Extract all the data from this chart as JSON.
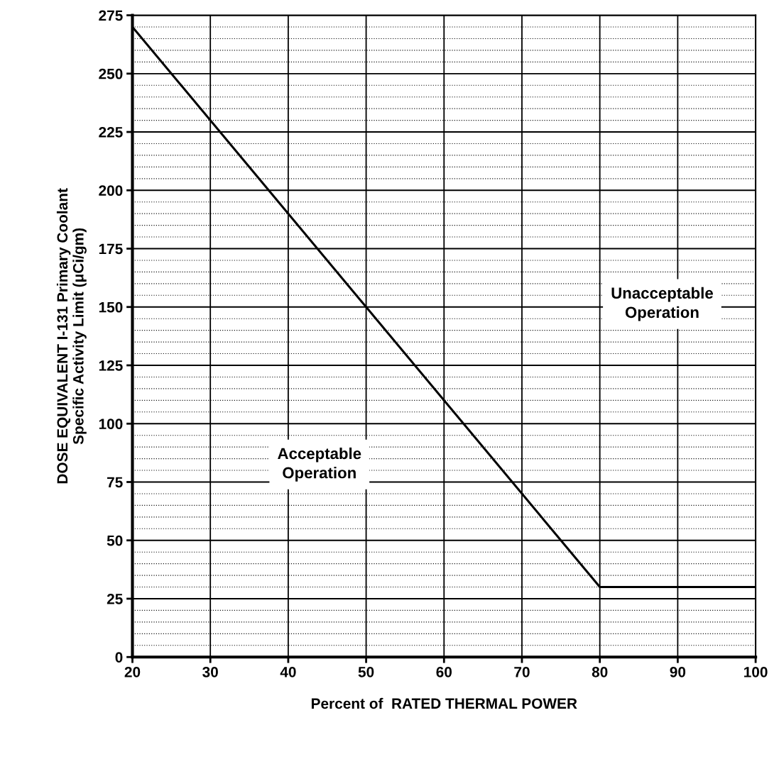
{
  "chart_data": {
    "type": "line",
    "x": [
      20,
      80,
      100
    ],
    "series": [
      {
        "color": "#000000",
        "values": [
          270,
          30,
          30
        ]
      }
    ],
    "xlabel": "Percent of  RATED THERMAL POWER",
    "ylabel": "DOSE EQUIVALENT I-131 Primary Coolant\nSpecific Activity Limit (μCi/gm)",
    "annotations": [
      "Unacceptable\nOperation",
      "Acceptable\nOperation"
    ],
    "xlim": [
      20,
      100
    ],
    "xticks": [
      20,
      30,
      40,
      50,
      60,
      70,
      80,
      90,
      100
    ],
    "ylim": [
      0,
      275
    ],
    "yticks": [
      0,
      25,
      50,
      75,
      100,
      125,
      150,
      175,
      200,
      225,
      250,
      275
    ],
    "grid": true,
    "marker": "none",
    "line_style": "solid"
  }
}
